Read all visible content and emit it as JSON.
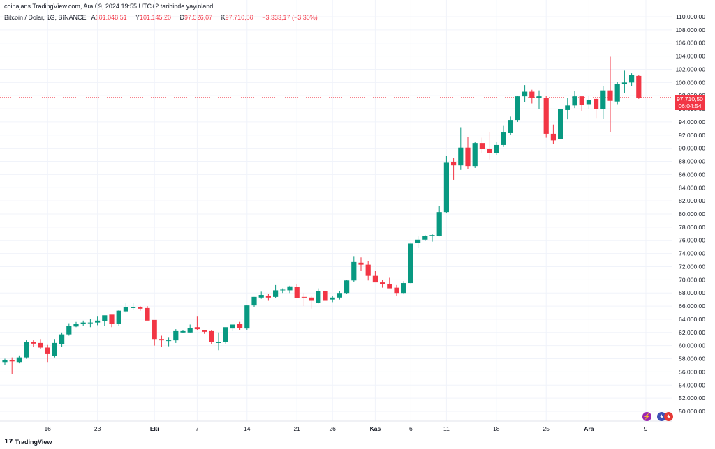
{
  "header": {
    "published": "coinajans TradingView.com, Ara 09, 2024 19:55 UTC+2 tarihinde yayınlandı",
    "symbol": "Bitcoin / Dolar, 1G, BINANCE",
    "open_label": "A",
    "open": "101.048,51",
    "high_label": "Y",
    "high": "101.145,20",
    "low_label": "D",
    "low": "97.526,07",
    "close_label": "K",
    "close": "97.710,50",
    "change": "−3.333,17 (−3,30%)"
  },
  "price_badge": {
    "price": "97.710,50",
    "countdown": "06:04:54",
    "color": "#f23645"
  },
  "footer": {
    "brand": "TradingView"
  },
  "events": {
    "flash_icon": "lightning-icon",
    "flag_icon": "us-flag-icon"
  },
  "colors": {
    "up": "#089981",
    "down": "#f23645",
    "grid": "#f0f3fa",
    "axis_text": "#131722"
  },
  "chart_data": {
    "type": "candlestick",
    "y_ticks": [
      "110.000,00",
      "108.000,00",
      "106.000,00",
      "104.000,00",
      "102.000,00",
      "100.000,00",
      "98.000,00",
      "96.000,00",
      "94.000,00",
      "92.000,00",
      "90.000,00",
      "88.000,00",
      "86.000,00",
      "84.000,00",
      "82.000,00",
      "80.000,00",
      "78.000,00",
      "76.000,00",
      "74.000,00",
      "72.000,00",
      "70.000,00",
      "68.000,00",
      "66.000,00",
      "64.000,00",
      "62.000,00",
      "60.000,00",
      "58.000,00",
      "56.000,00",
      "54.000,00",
      "52.000,00",
      "50.000,00"
    ],
    "x_ticks": [
      {
        "label": "16",
        "index": 6,
        "bold": false
      },
      {
        "label": "23",
        "index": 13,
        "bold": false
      },
      {
        "label": "Eki",
        "index": 21,
        "bold": true
      },
      {
        "label": "7",
        "index": 27,
        "bold": false
      },
      {
        "label": "14",
        "index": 34,
        "bold": false
      },
      {
        "label": "21",
        "index": 41,
        "bold": false
      },
      {
        "label": "26",
        "index": 46,
        "bold": false
      },
      {
        "label": "Kas",
        "index": 52,
        "bold": true
      },
      {
        "label": "6",
        "index": 57,
        "bold": false
      },
      {
        "label": "11",
        "index": 62,
        "bold": false
      },
      {
        "label": "18",
        "index": 69,
        "bold": false
      },
      {
        "label": "25",
        "index": 76,
        "bold": false
      },
      {
        "label": "Ara",
        "index": 82,
        "bold": true
      },
      {
        "label": "9",
        "index": 90,
        "bold": false
      }
    ],
    "last_price": 97710.5,
    "ylim": [
      48500,
      111000
    ],
    "candles": [
      [
        57500,
        58000,
        57000,
        57800
      ],
      [
        57800,
        58200,
        55700,
        57600
      ],
      [
        57500,
        58500,
        57300,
        58200
      ],
      [
        58200,
        60800,
        58000,
        60500
      ],
      [
        60500,
        60800,
        59800,
        60300
      ],
      [
        60400,
        61000,
        59500,
        59700
      ],
      [
        59700,
        60100,
        57500,
        58700
      ],
      [
        58400,
        61000,
        58200,
        60400
      ],
      [
        60200,
        62000,
        59800,
        61700
      ],
      [
        61700,
        63400,
        61500,
        63000
      ],
      [
        62900,
        63600,
        62800,
        63300
      ],
      [
        63300,
        63800,
        63000,
        63500
      ],
      [
        63400,
        64000,
        62800,
        63500
      ],
      [
        63500,
        64500,
        63100,
        63800
      ],
      [
        63700,
        64400,
        63000,
        64600
      ],
      [
        64700,
        64300,
        62800,
        63300
      ],
      [
        63300,
        65400,
        63000,
        65300
      ],
      [
        65200,
        66500,
        65000,
        65800
      ],
      [
        65700,
        66500,
        65400,
        65800
      ],
      [
        65900,
        66000,
        65300,
        65600
      ],
      [
        65700,
        66000,
        63900,
        63800
      ],
      [
        63900,
        63600,
        60000,
        61000
      ],
      [
        61000,
        61500,
        59800,
        60800
      ],
      [
        60800,
        61200,
        59900,
        60800
      ],
      [
        60800,
        62500,
        60400,
        62200
      ],
      [
        62000,
        62400,
        61900,
        62200
      ],
      [
        62000,
        63200,
        62000,
        62700
      ],
      [
        62800,
        64500,
        62400,
        62500
      ],
      [
        62400,
        62400,
        61800,
        62100
      ],
      [
        62200,
        62300,
        60200,
        60600
      ],
      [
        60400,
        62000,
        59300,
        60500
      ],
      [
        60600,
        62700,
        60300,
        62800
      ],
      [
        62600,
        63200,
        62200,
        63200
      ],
      [
        63300,
        63600,
        62400,
        62700
      ],
      [
        62600,
        66100,
        62400,
        66100
      ],
      [
        66100,
        67400,
        65800,
        67400
      ],
      [
        67300,
        68200,
        67100,
        67700
      ],
      [
        67600,
        67900,
        66800,
        67300
      ],
      [
        67400,
        69200,
        67200,
        68400
      ],
      [
        68400,
        68700,
        68000,
        68500
      ],
      [
        68400,
        69100,
        68000,
        69000
      ],
      [
        68900,
        69400,
        67500,
        67200
      ],
      [
        67400,
        68000,
        66000,
        67300
      ],
      [
        67300,
        67500,
        65600,
        66800
      ],
      [
        66500,
        68700,
        66400,
        68300
      ],
      [
        68300,
        68300,
        67000,
        66800
      ],
      [
        67000,
        67500,
        66600,
        67300
      ],
      [
        67300,
        68300,
        67000,
        68000
      ],
      [
        68000,
        70000,
        67900,
        69900
      ],
      [
        69900,
        73600,
        69700,
        72700
      ],
      [
        72600,
        73400,
        71400,
        72300
      ],
      [
        72300,
        72800,
        69900,
        70600
      ],
      [
        70600,
        71400,
        69800,
        69600
      ],
      [
        69600,
        70000,
        68800,
        69400
      ],
      [
        69400,
        70300,
        68800,
        68700
      ],
      [
        68800,
        69200,
        67500,
        68000
      ],
      [
        68000,
        69800,
        67800,
        69500
      ],
      [
        69500,
        75700,
        69400,
        75500
      ],
      [
        75600,
        76600,
        74900,
        76100
      ],
      [
        76100,
        76800,
        75900,
        76700
      ],
      [
        76700,
        77000,
        75800,
        76800
      ],
      [
        76700,
        81200,
        76600,
        80300
      ],
      [
        80300,
        88800,
        80100,
        87800
      ],
      [
        87900,
        88500,
        85200,
        87400
      ],
      [
        87400,
        93200,
        86700,
        90100
      ],
      [
        90100,
        91700,
        86800,
        87300
      ],
      [
        87300,
        91000,
        87000,
        90800
      ],
      [
        90800,
        91600,
        89300,
        89900
      ],
      [
        89900,
        92500,
        88300,
        89300
      ],
      [
        89300,
        91000,
        89000,
        90500
      ],
      [
        90500,
        93400,
        90200,
        92400
      ],
      [
        92300,
        94800,
        92000,
        94300
      ],
      [
        94300,
        98000,
        94000,
        97900
      ],
      [
        97900,
        99600,
        97000,
        98600
      ],
      [
        98600,
        98900,
        96800,
        97600
      ],
      [
        97600,
        98800,
        95900,
        97900
      ],
      [
        97600,
        98000,
        91600,
        92200
      ],
      [
        92200,
        93600,
        90700,
        91200
      ],
      [
        91400,
        96000,
        91400,
        95900
      ],
      [
        95800,
        97600,
        94400,
        96500
      ],
      [
        96500,
        98700,
        96100,
        97900
      ],
      [
        97900,
        97800,
        95700,
        96600
      ],
      [
        96700,
        98000,
        96000,
        97300
      ],
      [
        97500,
        97700,
        94600,
        96000
      ],
      [
        96000,
        99400,
        94500,
        98800
      ],
      [
        98800,
        103900,
        92400,
        97200
      ],
      [
        97100,
        100100,
        96700,
        99800
      ],
      [
        99800,
        101800,
        98400,
        100000
      ],
      [
        100000,
        101400,
        99400,
        101100
      ],
      [
        101000,
        101100,
        97500,
        97700
      ]
    ]
  }
}
